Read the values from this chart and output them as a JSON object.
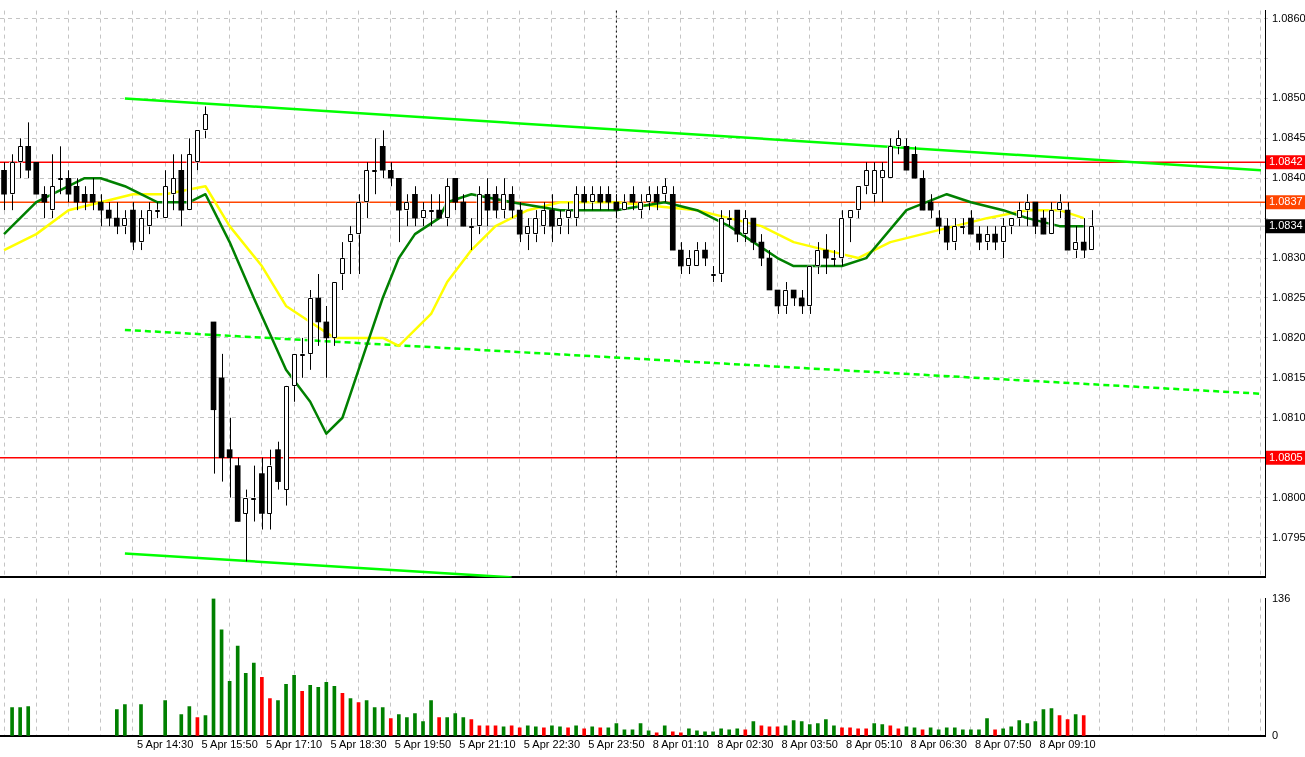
{
  "chart_data": [
    {
      "type": "candlestick",
      "categories": [
        null,
        null,
        null,
        null,
        null,
        null,
        null,
        null,
        null,
        null,
        null,
        null,
        null,
        null,
        null,
        null,
        null,
        null,
        null,
        null,
        "5 Apr 14:30",
        null,
        null,
        null,
        null,
        null,
        null,
        null,
        "5 Apr 15:50",
        null,
        null,
        null,
        null,
        null,
        null,
        null,
        "5 Apr 17:10",
        null,
        null,
        null,
        null,
        null,
        null,
        null,
        "5 Apr 18:30",
        null,
        null,
        null,
        null,
        null,
        null,
        null,
        "5 Apr 19:50",
        null,
        null,
        null,
        null,
        null,
        null,
        null,
        "5 Apr 21:10",
        null,
        null,
        null,
        null,
        null,
        null,
        null,
        "5 Apr 22:30",
        null,
        null,
        null,
        null,
        null,
        null,
        null,
        "5 Apr 23:50",
        null,
        null,
        null,
        null,
        null,
        null,
        null,
        "8 Apr 01:10",
        null,
        null,
        null,
        null,
        null,
        null,
        null,
        "8 Apr 02:30",
        null,
        null,
        null,
        null,
        null,
        null,
        null,
        "8 Apr 03:50",
        null,
        null,
        null,
        null,
        null,
        null,
        null,
        "8 Apr 05:10",
        null,
        null,
        null,
        null,
        null,
        null,
        null,
        "8 Apr 06:30",
        null,
        null,
        null,
        null,
        null,
        null,
        null,
        "8 Apr 07:50",
        null,
        null,
        null,
        null,
        null,
        null,
        null,
        "8 Apr 09:10",
        null,
        null,
        null,
        null,
        null,
        null,
        null,
        null,
        null,
        null,
        null,
        null,
        null,
        null,
        null,
        null,
        null,
        null,
        null,
        null,
        null,
        null,
        null,
        null
      ],
      "ohlc": [
        [
          1.0841,
          1.0842,
          1.0836,
          1.0838
        ],
        [
          1.0838,
          1.0843,
          1.0836,
          1.0842
        ],
        [
          1.0842,
          1.0845,
          1.084,
          1.0844
        ],
        [
          1.0844,
          1.0847,
          1.084,
          1.0841
        ],
        [
          1.0842,
          1.0842,
          1.0838,
          1.0838
        ],
        [
          1.0838,
          1.0839,
          1.0835,
          1.0837
        ],
        [
          1.0836,
          1.0843,
          1.0835,
          1.0839
        ],
        [
          1.084,
          1.0844,
          1.0838,
          1.084
        ],
        [
          1.084,
          1.0841,
          1.0837,
          1.0838
        ],
        [
          1.0839,
          1.084,
          1.0836,
          1.0837
        ],
        [
          1.0838,
          1.0839,
          1.0836,
          1.0837
        ],
        [
          1.0838,
          1.084,
          1.0836,
          1.0837
        ],
        [
          1.0837,
          1.0838,
          1.0834,
          1.0836
        ],
        [
          1.0836,
          1.0837,
          1.0834,
          1.0835
        ],
        [
          1.0835,
          1.0837,
          1.0833,
          1.0834
        ],
        [
          1.0834,
          1.0836,
          1.0833,
          1.0835
        ],
        [
          1.0836,
          1.0837,
          1.0831,
          1.0832
        ],
        [
          1.0832,
          1.0836,
          1.0831,
          1.0835
        ],
        [
          1.0834,
          1.0837,
          1.0833,
          1.0836
        ],
        [
          1.0836,
          1.0837,
          1.0835,
          1.0836
        ],
        [
          1.0835,
          1.0841,
          1.0835,
          1.0839
        ],
        [
          1.0838,
          1.0843,
          1.0836,
          1.084
        ],
        [
          1.0841,
          1.0843,
          1.0834,
          1.0836
        ],
        [
          1.0836,
          1.0845,
          1.0836,
          1.0843
        ],
        [
          1.0842,
          1.0846,
          1.0841,
          1.0846
        ],
        [
          1.0846,
          1.0849,
          1.0845,
          1.0848
        ],
        [
          1.0822,
          1.0822,
          1.0803,
          1.0811
        ],
        [
          1.0815,
          1.0818,
          1.0802,
          1.0805
        ],
        [
          1.0806,
          1.081,
          1.08,
          1.0805
        ],
        [
          1.0804,
          1.0805,
          1.0797,
          1.0797
        ],
        [
          1.0798,
          1.0801,
          1.0792,
          1.08
        ],
        [
          1.08,
          1.0804,
          1.0797,
          1.08
        ],
        [
          1.0803,
          1.0805,
          1.0796,
          1.0798
        ],
        [
          1.0798,
          1.0806,
          1.0796,
          1.0804
        ],
        [
          1.0806,
          1.0807,
          1.0801,
          1.0802
        ],
        [
          1.0801,
          1.0814,
          1.0799,
          1.0814
        ],
        [
          1.0814,
          1.0818,
          1.0812,
          1.0818
        ],
        [
          1.0818,
          1.082,
          1.0815,
          1.0818
        ],
        [
          1.0818,
          1.0826,
          1.0816,
          1.0825
        ],
        [
          1.0825,
          1.0828,
          1.0819,
          1.0822
        ],
        [
          1.0822,
          1.0824,
          1.0815,
          1.082
        ],
        [
          1.082,
          1.0827,
          1.0819,
          1.0827
        ],
        [
          1.0828,
          1.0832,
          1.0826,
          1.083
        ],
        [
          1.0832,
          1.0834,
          1.0828,
          1.0833
        ],
        [
          1.0833,
          1.0838,
          1.0828,
          1.0837
        ],
        [
          1.0837,
          1.0842,
          1.0835,
          1.0841
        ],
        [
          1.0841,
          1.0845,
          1.0838,
          1.0841
        ],
        [
          1.0844,
          1.0846,
          1.084,
          1.0841
        ],
        [
          1.0841,
          1.0842,
          1.0839,
          1.084
        ],
        [
          1.084,
          1.084,
          1.0832,
          1.0836
        ],
        [
          1.0836,
          1.0838,
          1.0834,
          1.0837
        ],
        [
          1.0838,
          1.0839,
          1.0834,
          1.0835
        ],
        [
          1.0835,
          1.0837,
          1.0834,
          1.0836
        ],
        [
          1.0836,
          1.0838,
          1.0834,
          1.0836
        ],
        [
          1.0836,
          1.0838,
          1.0835,
          1.0835
        ],
        [
          1.0835,
          1.084,
          1.0834,
          1.0839
        ],
        [
          1.084,
          1.084,
          1.0836,
          1.0837
        ],
        [
          1.0837,
          1.0838,
          1.0834,
          1.0834
        ],
        [
          1.0834,
          1.0835,
          1.0831,
          1.0834
        ],
        [
          1.0834,
          1.0839,
          1.0833,
          1.0838
        ],
        [
          1.0838,
          1.084,
          1.0834,
          1.0836
        ],
        [
          1.0838,
          1.0839,
          1.0835,
          1.0836
        ],
        [
          1.0836,
          1.084,
          1.0835,
          1.0838
        ],
        [
          1.0838,
          1.0839,
          1.0835,
          1.0836
        ],
        [
          1.0836,
          1.0837,
          1.0832,
          1.0833
        ],
        [
          1.0833,
          1.0835,
          1.0831,
          1.0834
        ],
        [
          1.0833,
          1.0836,
          1.0832,
          1.0835
        ],
        [
          1.0834,
          1.0837,
          1.0833,
          1.0836
        ],
        [
          1.0836,
          1.0838,
          1.0832,
          1.0834
        ],
        [
          1.0834,
          1.0836,
          1.0833,
          1.0835
        ],
        [
          1.0835,
          1.0837,
          1.0833,
          1.0836
        ],
        [
          1.0835,
          1.0839,
          1.0834,
          1.0838
        ],
        [
          1.0838,
          1.0839,
          1.0836,
          1.0837
        ],
        [
          1.0837,
          1.0839,
          1.0836,
          1.0838
        ],
        [
          1.0838,
          1.0839,
          1.0836,
          1.0837
        ],
        [
          1.0838,
          1.0839,
          1.0836,
          1.0837
        ],
        [
          1.0837,
          1.0838,
          1.0835,
          1.0836
        ],
        [
          1.0836,
          1.0838,
          1.0836,
          1.0837
        ],
        [
          1.0838,
          1.0839,
          1.0836,
          1.0837
        ],
        [
          1.0836,
          1.0838,
          1.0835,
          1.0837
        ],
        [
          1.0837,
          1.0839,
          1.0836,
          1.0838
        ],
        [
          1.0838,
          1.0839,
          1.0836,
          1.0837
        ],
        [
          1.0838,
          1.084,
          1.0837,
          1.0839
        ],
        [
          1.0838,
          1.0839,
          1.0831,
          1.0831
        ],
        [
          1.0831,
          1.0832,
          1.0828,
          1.0829
        ],
        [
          1.0829,
          1.0831,
          1.0828,
          1.083
        ],
        [
          1.0829,
          1.0832,
          1.0829,
          1.0831
        ],
        [
          1.0831,
          1.0832,
          1.0829,
          1.083
        ],
        [
          1.0828,
          1.0829,
          1.0827,
          1.0828
        ],
        [
          1.0828,
          1.0836,
          1.0827,
          1.0835
        ],
        [
          1.0835,
          1.0836,
          1.0834,
          1.0835
        ],
        [
          1.0836,
          1.0836,
          1.0832,
          1.0833
        ],
        [
          1.0833,
          1.0836,
          1.0832,
          1.0835
        ],
        [
          1.0835,
          1.0835,
          1.0831,
          1.0832
        ],
        [
          1.0832,
          1.0833,
          1.0829,
          1.083
        ],
        [
          1.083,
          1.0831,
          1.0826,
          1.0826
        ],
        [
          1.0826,
          1.0826,
          1.0823,
          1.0824
        ],
        [
          1.0824,
          1.0827,
          1.0823,
          1.0826
        ],
        [
          1.0826,
          1.0826,
          1.0824,
          1.0825
        ],
        [
          1.0825,
          1.0826,
          1.0823,
          1.0824
        ],
        [
          1.0824,
          1.0829,
          1.0823,
          1.0829
        ],
        [
          1.0829,
          1.0832,
          1.0828,
          1.0831
        ],
        [
          1.0831,
          1.0833,
          1.0828,
          1.083
        ],
        [
          1.083,
          1.0831,
          1.0829,
          1.083
        ],
        [
          1.083,
          1.0836,
          1.0829,
          1.0835
        ],
        [
          1.0835,
          1.0836,
          1.0832,
          1.0836
        ],
        [
          1.0836,
          1.0839,
          1.0835,
          1.0839
        ],
        [
          1.0839,
          1.0842,
          1.0838,
          1.0841
        ],
        [
          1.0838,
          1.0842,
          1.0837,
          1.0841
        ],
        [
          1.084,
          1.0842,
          1.0837,
          1.0841
        ],
        [
          1.084,
          1.0845,
          1.084,
          1.0844
        ],
        [
          1.0844,
          1.0846,
          1.0843,
          1.0845
        ],
        [
          1.0844,
          1.0845,
          1.0841,
          1.0841
        ],
        [
          1.0843,
          1.0844,
          1.084,
          1.084
        ],
        [
          1.084,
          1.0841,
          1.0836,
          1.0836
        ],
        [
          1.0837,
          1.0838,
          1.0835,
          1.0836
        ],
        [
          1.0835,
          1.0836,
          1.0833,
          1.0834
        ],
        [
          1.0834,
          1.0835,
          1.0831,
          1.0832
        ],
        [
          1.0832,
          1.0835,
          1.0831,
          1.0834
        ],
        [
          1.0834,
          1.0835,
          1.0833,
          1.0834
        ],
        [
          1.0835,
          1.0836,
          1.0833,
          1.0833
        ],
        [
          1.0833,
          1.0834,
          1.0831,
          1.0832
        ],
        [
          1.0832,
          1.0834,
          1.0831,
          1.0833
        ],
        [
          1.0833,
          1.0834,
          1.0831,
          1.0832
        ],
        [
          1.0832,
          1.0835,
          1.083,
          1.0834
        ],
        [
          1.0834,
          1.0835,
          1.0833,
          1.0835
        ],
        [
          1.0835,
          1.0837,
          1.0834,
          1.0836
        ],
        [
          1.0836,
          1.0838,
          1.0834,
          1.0837
        ],
        [
          1.0837,
          1.0837,
          1.0833,
          1.0834
        ],
        [
          1.0835,
          1.0836,
          1.0833,
          1.0833
        ],
        [
          1.0833,
          1.0837,
          1.0833,
          1.0836
        ],
        [
          1.0836,
          1.0838,
          1.0835,
          1.0837
        ],
        [
          1.0836,
          1.0837,
          1.0831,
          1.0831
        ],
        [
          1.0831,
          1.0834,
          1.083,
          1.0832
        ],
        [
          1.0832,
          1.0835,
          1.083,
          1.0831
        ],
        [
          1.0831,
          1.0836,
          1.0831,
          1.0834
        ],
        null,
        null,
        null,
        null,
        null,
        null,
        null,
        null,
        null,
        null,
        null,
        null,
        null,
        null,
        null,
        null,
        null,
        null,
        null,
        null,
        null
      ],
      "series": [
        {
          "type": "line",
          "color": "#008000",
          "values": [
            1.0833,
            null,
            1.0835,
            null,
            1.0837,
            null,
            1.0838,
            null,
            1.0839,
            null,
            1.084,
            null,
            1.084,
            null,
            null,
            1.0839,
            null,
            1.0838,
            null,
            1.0837,
            null,
            null,
            1.0837,
            1.0837,
            null,
            1.0838,
            1.0836,
            null,
            1.0832,
            null,
            null,
            1.0825,
            null,
            null,
            null,
            1.0816,
            null,
            null,
            1.0812,
            null,
            1.0808,
            null,
            1.081,
            1.0813,
            null,
            1.0819,
            null,
            1.0825,
            null,
            1.083,
            null,
            1.0833,
            null,
            null,
            1.0835,
            1.0837,
            null,
            null,
            1.0838,
            null,
            null,
            null,
            null,
            1.0837,
            null,
            null,
            null,
            null,
            null,
            1.0836,
            null,
            null,
            null,
            null,
            null,
            null,
            1.0836,
            null,
            null,
            null,
            null,
            null,
            1.0837,
            null,
            null,
            null,
            1.0836,
            null,
            null,
            null,
            1.0834,
            null,
            null,
            1.0832,
            null,
            null,
            1.083,
            null,
            1.0829,
            null,
            null,
            null,
            null,
            null,
            1.0829,
            null,
            null,
            1.083,
            null,
            null,
            null,
            null,
            1.0836,
            null,
            null,
            null,
            null,
            1.0838,
            null,
            null,
            1.0837,
            null,
            null,
            null,
            1.0836,
            null,
            null,
            1.0835,
            null,
            null,
            null,
            1.0834,
            null,
            null,
            1.0834,
            null,
            null,
            null,
            null,
            null,
            null,
            null,
            null,
            null,
            null,
            null,
            null,
            null,
            null,
            null,
            null,
            null,
            null,
            null,
            null,
            null,
            null
          ]
        },
        {
          "type": "line",
          "color": "#ffff00",
          "values": [
            1.0831,
            null,
            null,
            null,
            1.0833,
            null,
            null,
            null,
            1.0836,
            null,
            null,
            null,
            1.0837,
            null,
            null,
            null,
            1.0838,
            null,
            null,
            null,
            1.0838,
            null,
            null,
            null,
            null,
            1.0839,
            null,
            null,
            1.0834,
            null,
            null,
            null,
            1.0829,
            null,
            null,
            1.0824,
            null,
            null,
            1.0822,
            null,
            null,
            1.082,
            null,
            null,
            1.082,
            null,
            null,
            1.082,
            null,
            1.0819,
            null,
            1.0821,
            null,
            1.0823,
            null,
            1.0827,
            null,
            null,
            1.0831,
            null,
            null,
            1.0834,
            null,
            null,
            null,
            1.0836,
            null,
            null,
            null,
            1.0837,
            null,
            null,
            null,
            null,
            null,
            null,
            1.0837,
            null,
            null,
            null,
            null,
            null,
            null,
            null,
            null,
            null,
            1.0836,
            null,
            null,
            null,
            1.0835,
            null,
            null,
            null,
            1.0834,
            null,
            null,
            null,
            1.0832,
            null,
            null,
            null,
            1.0831,
            null,
            null,
            null,
            1.083,
            null,
            null,
            null,
            1.0832,
            null,
            null,
            null,
            1.0833,
            null,
            null,
            null,
            1.0834,
            null,
            null,
            null,
            1.0835,
            null,
            null,
            null,
            null,
            1.0836,
            null,
            null,
            null,
            1.0836,
            null,
            null,
            1.0835,
            null,
            null,
            null,
            null,
            null,
            null,
            null,
            null,
            null,
            null,
            null,
            null,
            null,
            null,
            null,
            null,
            null,
            null,
            null,
            null,
            null,
            null
          ]
        },
        {
          "type": "line",
          "color": "#00ff00",
          "values": [
            null,
            null,
            null,
            null,
            null,
            null,
            null,
            null,
            null,
            null,
            null,
            null,
            null,
            null,
            null,
            1.085,
            null,
            null,
            null,
            null,
            null,
            null,
            null,
            null,
            null,
            null,
            null,
            null,
            null,
            null,
            null,
            null,
            null,
            null,
            null,
            null,
            null,
            null,
            null,
            null,
            null,
            null,
            null,
            null,
            null,
            null,
            null,
            null,
            null,
            null,
            null,
            null,
            null,
            null,
            null,
            null,
            null,
            null,
            null,
            null,
            null,
            null,
            null,
            null,
            null,
            null,
            null,
            null,
            null,
            null,
            null,
            null,
            null,
            null,
            null,
            null,
            null,
            null,
            null,
            null,
            null,
            null,
            null,
            null,
            null,
            null,
            null,
            null,
            null,
            null,
            null,
            null,
            null,
            null,
            null,
            null,
            null,
            null,
            null,
            null,
            null,
            null,
            null,
            null,
            null,
            null,
            null,
            null,
            null,
            null,
            null,
            null,
            null,
            null,
            null,
            null,
            null,
            null,
            null,
            null,
            null,
            null,
            null,
            null,
            null,
            null,
            null,
            null,
            null,
            null,
            null,
            null,
            null,
            null,
            null,
            null,
            null,
            null,
            null,
            null,
            null,
            null,
            null,
            null,
            null,
            null,
            null,
            null,
            null,
            null,
            null,
            null,
            null,
            null,
            null,
            null,
            1.0841
          ]
        },
        {
          "type": "line",
          "color": "#00ff00",
          "values": [
            null,
            null,
            null,
            null,
            null,
            null,
            null,
            null,
            null,
            null,
            null,
            null,
            null,
            null,
            null,
            1.0793,
            null,
            null,
            null,
            null,
            null,
            null,
            null,
            null,
            null,
            null,
            null,
            null,
            null,
            null,
            null,
            null,
            null,
            null,
            null,
            null,
            null,
            null,
            null,
            null,
            null,
            null,
            null,
            null,
            null,
            null,
            null,
            null,
            null,
            null,
            null,
            null,
            null,
            null,
            null,
            null,
            null,
            null,
            null,
            null,
            null,
            null,
            null,
            1.079,
            null,
            null,
            null,
            null,
            null,
            null,
            null,
            null,
            null,
            null,
            null,
            null,
            null,
            null,
            null,
            null,
            null,
            null,
            null,
            null,
            null,
            null,
            null,
            null,
            null,
            null,
            null,
            null,
            null,
            null,
            null,
            null,
            null,
            null,
            null,
            null,
            null,
            null,
            null,
            null,
            null,
            null,
            null,
            null,
            null,
            null,
            null,
            null,
            null,
            null,
            null,
            null,
            null,
            null,
            null,
            null,
            null,
            null,
            null,
            null,
            null,
            null,
            null,
            null,
            null,
            null,
            null,
            null,
            null,
            null,
            null,
            null,
            null,
            null,
            null,
            null,
            null,
            null,
            null,
            null,
            null,
            null,
            null,
            null,
            null,
            null,
            null,
            null,
            null,
            null,
            null,
            null,
            null
          ]
        },
        {
          "type": "line",
          "color": "#00ff00",
          "line_style": "dashed",
          "values": [
            null,
            null,
            null,
            null,
            null,
            null,
            null,
            null,
            null,
            null,
            null,
            null,
            null,
            null,
            null,
            1.0821,
            null,
            null,
            null,
            null,
            null,
            null,
            null,
            null,
            null,
            null,
            null,
            null,
            null,
            null,
            null,
            null,
            null,
            null,
            null,
            null,
            null,
            null,
            null,
            null,
            null,
            null,
            null,
            null,
            null,
            null,
            null,
            null,
            null,
            null,
            null,
            null,
            null,
            null,
            null,
            null,
            null,
            null,
            null,
            null,
            null,
            null,
            null,
            null,
            null,
            null,
            null,
            null,
            null,
            null,
            null,
            null,
            null,
            null,
            null,
            null,
            null,
            null,
            null,
            null,
            null,
            null,
            null,
            null,
            null,
            null,
            null,
            null,
            null,
            null,
            null,
            null,
            null,
            null,
            null,
            null,
            null,
            null,
            null,
            null,
            null,
            null,
            null,
            null,
            null,
            null,
            null,
            null,
            null,
            null,
            null,
            null,
            null,
            null,
            null,
            null,
            null,
            null,
            null,
            null,
            null,
            null,
            null,
            null,
            null,
            null,
            null,
            null,
            null,
            null,
            null,
            null,
            null,
            null,
            null,
            null,
            null,
            null,
            null,
            null,
            null,
            null,
            null,
            null,
            null,
            null,
            null,
            null,
            null,
            null,
            null,
            null,
            null,
            null,
            null,
            null,
            1.0813
          ]
        }
      ],
      "ylim": [
        1.079,
        1.0861
      ],
      "yticks": [
        {
          "value": 1.0795,
          "label": "1.0795"
        },
        {
          "value": 1.08,
          "label": "1.0800"
        },
        {
          "value": 1.0805,
          "label": null
        },
        {
          "value": 1.081,
          "label": "1.0810"
        },
        {
          "value": 1.0815,
          "label": "1.0815"
        },
        {
          "value": 1.082,
          "label": "1.0820"
        },
        {
          "value": 1.0825,
          "label": "1.0825"
        },
        {
          "value": 1.083,
          "label": "1.0830"
        },
        {
          "value": 1.0835,
          "label": null
        },
        {
          "value": 1.084,
          "label": "1.0840"
        },
        {
          "value": 1.0845,
          "label": "1.0845"
        },
        {
          "value": 1.085,
          "label": "1.0850"
        },
        {
          "value": 1.0855,
          "label": null
        },
        {
          "value": 1.086,
          "label": "1.0860"
        }
      ],
      "tick_labels": "y",
      "grid": true,
      "ref_lines": [
        {
          "axis": "y",
          "value": 1.0842,
          "label": "1.0842",
          "color": "#ff0000"
        },
        {
          "axis": "y",
          "value": 1.0805,
          "label": "1.0805",
          "color": "#ff0000"
        },
        {
          "axis": "y",
          "value": 1.0837,
          "label": "1.0837",
          "color": "#ff4500"
        },
        {
          "axis": "y",
          "value": 1.0834,
          "label": "1.0834",
          "color": "#c0c0c0"
        },
        {
          "axis": "x",
          "value": "5 Apr 23:50",
          "color": "#000000",
          "line_style": "dotted"
        }
      ]
    },
    {
      "type": "bar",
      "categories": [
        null,
        null,
        null,
        null,
        null,
        null,
        null,
        null,
        null,
        null,
        null,
        null,
        null,
        null,
        null,
        null,
        null,
        null,
        null,
        null,
        "5 Apr 14:30",
        null,
        null,
        null,
        null,
        null,
        null,
        null,
        "5 Apr 15:50",
        null,
        null,
        null,
        null,
        null,
        null,
        null,
        "5 Apr 17:10",
        null,
        null,
        null,
        null,
        null,
        null,
        null,
        "5 Apr 18:30",
        null,
        null,
        null,
        null,
        null,
        null,
        null,
        "5 Apr 19:50",
        null,
        null,
        null,
        null,
        null,
        null,
        null,
        "5 Apr 21:10",
        null,
        null,
        null,
        null,
        null,
        null,
        null,
        "5 Apr 22:30",
        null,
        null,
        null,
        null,
        null,
        null,
        null,
        "5 Apr 23:50",
        null,
        null,
        null,
        null,
        null,
        null,
        null,
        "8 Apr 01:10",
        null,
        null,
        null,
        null,
        null,
        null,
        null,
        "8 Apr 02:30",
        null,
        null,
        null,
        null,
        null,
        null,
        null,
        "8 Apr 03:50",
        null,
        null,
        null,
        null,
        null,
        null,
        null,
        "8 Apr 05:10",
        null,
        null,
        null,
        null,
        null,
        null,
        null,
        "8 Apr 06:30",
        null,
        null,
        null,
        null,
        null,
        null,
        null,
        "8 Apr 07:50",
        null,
        null,
        null,
        null,
        null,
        null,
        null,
        "8 Apr 09:10",
        null,
        null,
        null,
        null,
        null,
        null,
        null,
        null,
        null,
        null,
        null,
        null,
        null,
        null,
        null,
        null,
        null,
        null,
        null,
        null,
        null,
        null,
        null,
        null
      ],
      "values": [
        null,
        28,
        28,
        29,
        null,
        null,
        null,
        null,
        null,
        null,
        null,
        null,
        null,
        null,
        26,
        31,
        null,
        31,
        null,
        null,
        35,
        null,
        21,
        29,
        18,
        20,
        136,
        105,
        54,
        89,
        62,
        72,
        58,
        37,
        35,
        51,
        60,
        44,
        50,
        48,
        53,
        49,
        42,
        37,
        33,
        35,
        28,
        28,
        17,
        21,
        18,
        22,
        14,
        35,
        18,
        18,
        22,
        18,
        16,
        10,
        10,
        10,
        9,
        10,
        8,
        10,
        9,
        8,
        10,
        9,
        8,
        10,
        7,
        9,
        8,
        8,
        12,
        6,
        6,
        12,
        5,
        3,
        10,
        4,
        3,
        7,
        5,
        4,
        4,
        7,
        6,
        7,
        6,
        14,
        10,
        9,
        9,
        10,
        15,
        14,
        11,
        12,
        16,
        10,
        8,
        8,
        7,
        7,
        12,
        11,
        10,
        7,
        9,
        8,
        6,
        8,
        6,
        8,
        8,
        6,
        6,
        6,
        17,
        6,
        7,
        9,
        15,
        12,
        14,
        26,
        27,
        20,
        16,
        21,
        20,
        null,
        null,
        null,
        null,
        null,
        null,
        null,
        null,
        null,
        null,
        null,
        null,
        null,
        null,
        null,
        null,
        null,
        null,
        null,
        null,
        null,
        null
      ],
      "colors": [
        "#008000",
        "#008000",
        "#008000",
        "#008000",
        "#008000",
        "#008000",
        "#008000",
        "#008000",
        "#008000",
        "#008000",
        "#008000",
        "#008000",
        "#008000",
        "#008000",
        "#008000",
        "#008000",
        "#008000",
        "#008000",
        "#008000",
        "#008000",
        "#008000",
        "#008000",
        "#008000",
        "#008000",
        "#ff0000",
        "#008000",
        "#008000",
        "#008000",
        "#008000",
        "#008000",
        "#008000",
        "#008000",
        "#ff0000",
        "#ff0000",
        "#008000",
        "#008000",
        "#008000",
        "#ff0000",
        "#008000",
        "#008000",
        "#008000",
        "#008000",
        "#ff0000",
        "#008000",
        "#ff0000",
        "#008000",
        "#008000",
        "#008000",
        "#ff0000",
        "#008000",
        "#008000",
        "#008000",
        "#008000",
        "#008000",
        "#ff0000",
        "#008000",
        "#008000",
        "#008000",
        "#ff0000",
        "#ff0000",
        "#ff0000",
        "#ff0000",
        "#008000",
        "#ff0000",
        "#ff0000",
        "#008000",
        "#008000",
        "#ff0000",
        "#008000",
        "#008000",
        "#ff0000",
        "#008000",
        "#ff0000",
        "#008000",
        "#ff0000",
        "#008000",
        "#008000",
        "#008000",
        "#008000",
        "#008000",
        "#008000",
        "#ff0000",
        "#008000",
        "#ff0000",
        "#ff0000",
        "#008000",
        "#008000",
        "#008000",
        "#008000",
        "#008000",
        "#008000",
        "#008000",
        "#ff0000",
        "#008000",
        "#ff0000",
        "#ff0000",
        "#ff0000",
        "#008000",
        "#008000",
        "#008000",
        "#008000",
        "#008000",
        "#008000",
        "#008000",
        "#ff0000",
        "#ff0000",
        "#ff0000",
        "#ff0000",
        "#008000",
        "#008000",
        "#ff0000",
        "#ff0000",
        "#008000",
        "#008000",
        "#ff0000",
        "#008000",
        "#008000",
        "#008000",
        "#008000",
        "#008000",
        "#008000",
        "#008000",
        "#008000",
        "#ff0000",
        "#008000",
        "#008000",
        "#008000",
        "#008000",
        "#008000",
        "#008000",
        "#008000",
        "#ff0000",
        "#ff0000",
        "#008000",
        "#ff0000",
        "#008000",
        "#008000",
        "#008000",
        "#008000",
        "#008000",
        "#008000",
        "#008000",
        "#008000",
        "#008000",
        "#008000",
        "#008000",
        "#008000",
        "#008000",
        "#008000",
        "#008000",
        "#008000",
        "#008000",
        "#008000",
        "#008000",
        "#008000",
        "#008000",
        "#008000"
      ],
      "ylim": [
        0,
        136
      ],
      "yticks": [
        0,
        136
      ],
      "grid": "x"
    }
  ]
}
